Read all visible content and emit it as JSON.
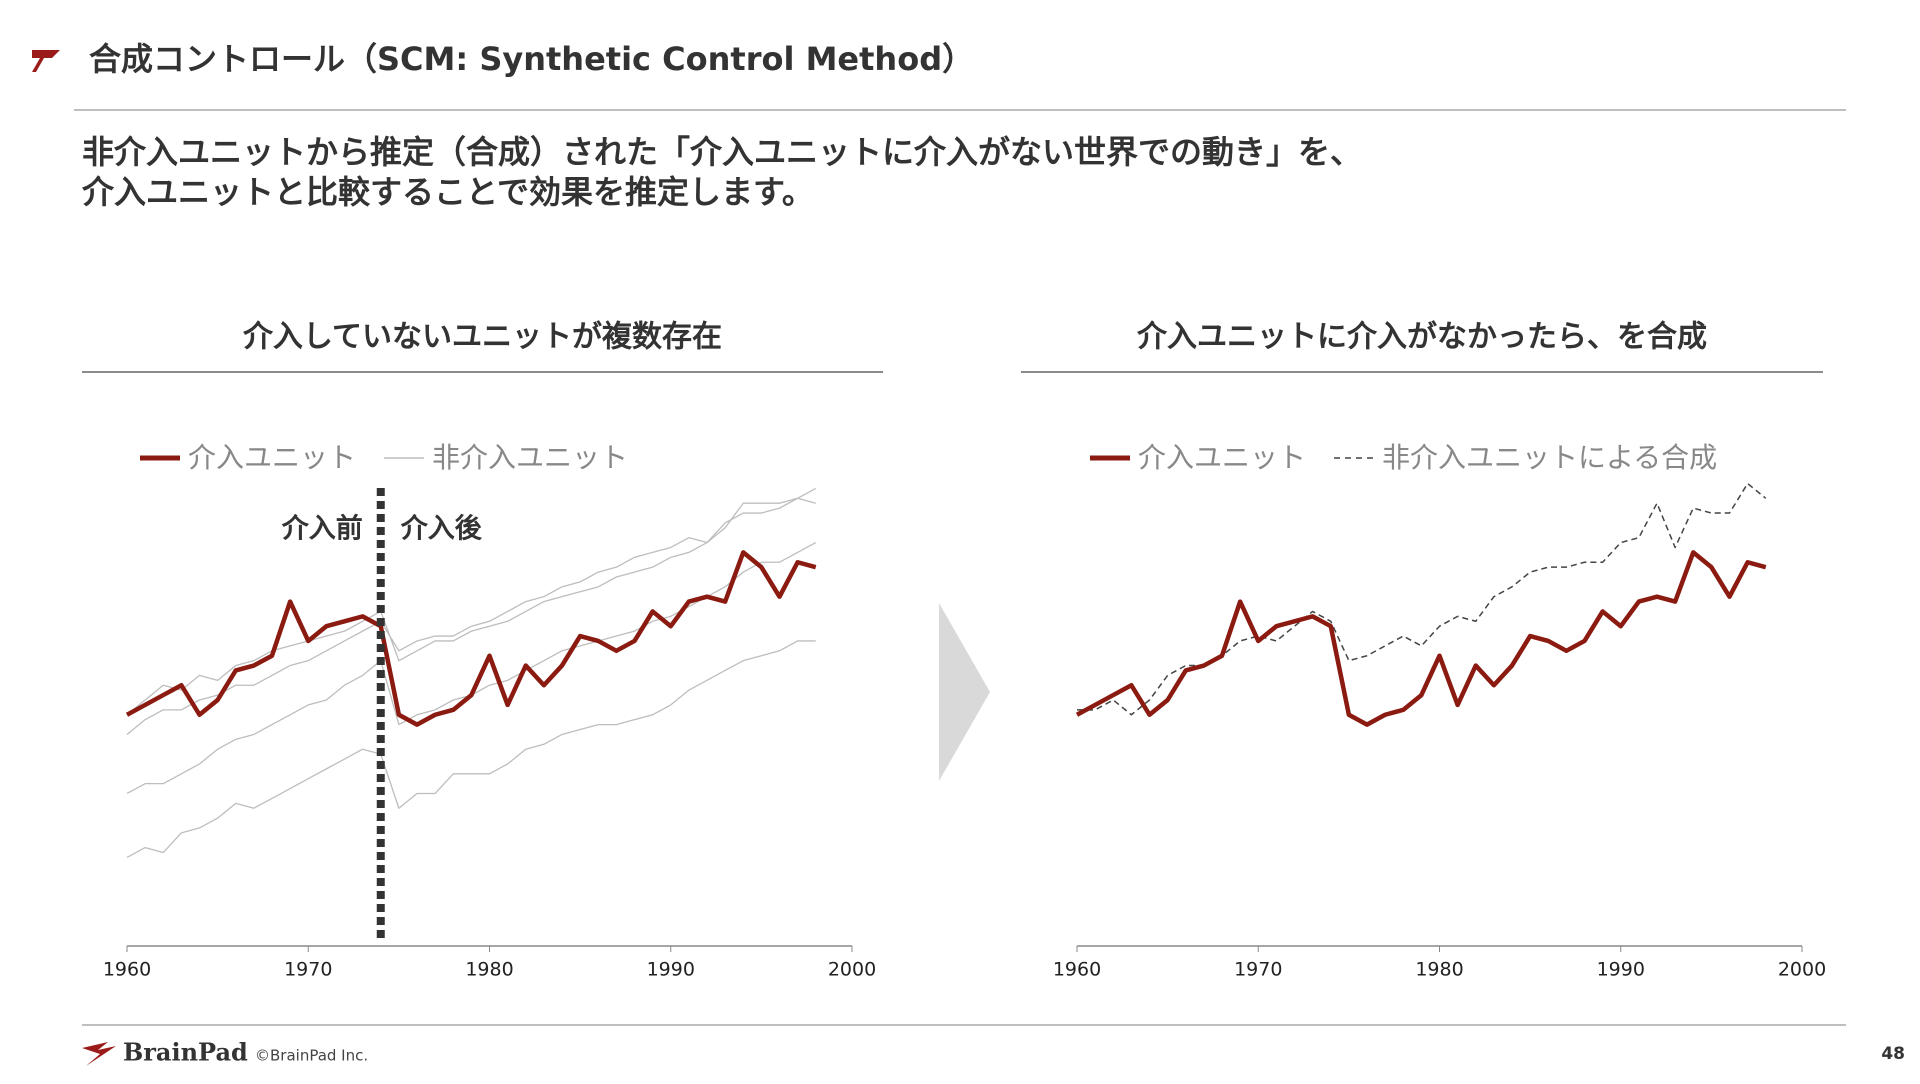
{
  "header": {
    "title": "合成コントロール（SCM: Synthetic Control Method）",
    "subtitle": [
      "非介入ユニットから推定（合成）された「介入ユニットに介入がない世界での動き」を、",
      "介入ユニットと比較することで効果を推定します。"
    ]
  },
  "chart_data": [
    {
      "type": "line",
      "title": "介入していないユニットが複数存在",
      "xlim": [
        1960,
        2000
      ],
      "xticks": [
        1960,
        1970,
        1980,
        1990,
        2000
      ],
      "ylim": [
        0,
        100
      ],
      "x": [
        1960,
        1961,
        1962,
        1963,
        1964,
        1965,
        1966,
        1967,
        1968,
        1969,
        1970,
        1971,
        1972,
        1973,
        1974,
        1975,
        1976,
        1977,
        1978,
        1979,
        1980,
        1981,
        1982,
        1983,
        1984,
        1985,
        1986,
        1987,
        1988,
        1989,
        1990,
        1991,
        1992,
        1993,
        1994,
        1995,
        1996,
        1997,
        1998
      ],
      "series": [
        {
          "name": "介入ユニット",
          "color": "#8b1a10",
          "values": [
            47,
            49,
            51,
            53,
            47,
            50,
            56,
            57,
            59,
            70,
            62,
            65,
            66,
            67,
            65,
            47,
            45,
            47,
            48,
            51,
            59,
            49,
            57,
            53,
            57,
            63,
            62,
            60,
            62,
            68,
            65,
            70,
            71,
            70,
            80,
            77,
            71,
            78,
            77
          ]
        },
        {
          "name": "非介入ユニット",
          "color": "#bdbdbd",
          "values": [
            47,
            50,
            53,
            52,
            55,
            54,
            57,
            58,
            60,
            61,
            62,
            63,
            64,
            66,
            68,
            58,
            60,
            62,
            62,
            64,
            65,
            66,
            68,
            70,
            71,
            72,
            73,
            75,
            76,
            77,
            79,
            80,
            82,
            86,
            88,
            88,
            89,
            91,
            93
          ]
        },
        {
          "color": "#bdbdbd",
          "values": [
            43,
            46,
            48,
            48,
            50,
            51,
            53,
            53,
            55,
            57,
            58,
            60,
            62,
            64,
            66,
            60,
            62,
            63,
            63,
            65,
            66,
            68,
            70,
            71,
            73,
            74,
            76,
            77,
            79,
            80,
            81,
            83,
            82,
            85,
            90,
            90,
            90,
            91,
            90
          ]
        },
        {
          "color": "#bdbdbd",
          "values": [
            31,
            33,
            33,
            35,
            37,
            40,
            42,
            43,
            45,
            47,
            49,
            50,
            53,
            55,
            58,
            45,
            47,
            48,
            50,
            51,
            53,
            54,
            56,
            58,
            60,
            61,
            62,
            63,
            64,
            66,
            67,
            69,
            71,
            73,
            76,
            78,
            78,
            80,
            82
          ]
        },
        {
          "color": "#bdbdbd",
          "values": [
            18,
            20,
            19,
            23,
            24,
            26,
            29,
            28,
            30,
            32,
            34,
            36,
            38,
            40,
            39,
            28,
            31,
            31,
            35,
            35,
            35,
            37,
            40,
            41,
            43,
            44,
            45,
            45,
            46,
            47,
            49,
            52,
            54,
            56,
            58,
            59,
            60,
            62,
            62
          ]
        }
      ],
      "intervention": 1974,
      "annotations": [
        "介入前",
        "介入後"
      ]
    },
    {
      "type": "line",
      "title": "介入ユニットに介入がなかったら、を合成",
      "xlim": [
        1960,
        2000
      ],
      "xticks": [
        1960,
        1970,
        1980,
        1990,
        2000
      ],
      "ylim": [
        0,
        100
      ],
      "x": [
        1960,
        1961,
        1962,
        1963,
        1964,
        1965,
        1966,
        1967,
        1968,
        1969,
        1970,
        1971,
        1972,
        1973,
        1974,
        1975,
        1976,
        1977,
        1978,
        1979,
        1980,
        1981,
        1982,
        1983,
        1984,
        1985,
        1986,
        1987,
        1988,
        1989,
        1990,
        1991,
        1992,
        1993,
        1994,
        1995,
        1996,
        1997,
        1998
      ],
      "series": [
        {
          "name": "介入ユニット",
          "color": "#8b1a10",
          "values": [
            47,
            49,
            51,
            53,
            47,
            50,
            56,
            57,
            59,
            70,
            62,
            65,
            66,
            67,
            65,
            47,
            45,
            47,
            48,
            51,
            59,
            49,
            57,
            53,
            57,
            63,
            62,
            60,
            62,
            68,
            65,
            70,
            71,
            70,
            80,
            77,
            71,
            78,
            77
          ]
        },
        {
          "name": "非介入ユニットによる合成",
          "color": "#444444",
          "dashed": true,
          "values": [
            48,
            48,
            50,
            47,
            50,
            55,
            57,
            57,
            59,
            62,
            63,
            62,
            65,
            68,
            66,
            58,
            59,
            61,
            63,
            61,
            65,
            67,
            66,
            71,
            73,
            76,
            77,
            77,
            78,
            78,
            82,
            83,
            90,
            81,
            89,
            88,
            88,
            94,
            91
          ]
        }
      ]
    }
  ],
  "footer": {
    "logo": "BrainPad",
    "copyright": "©BrainPad Inc.",
    "page": "48"
  }
}
